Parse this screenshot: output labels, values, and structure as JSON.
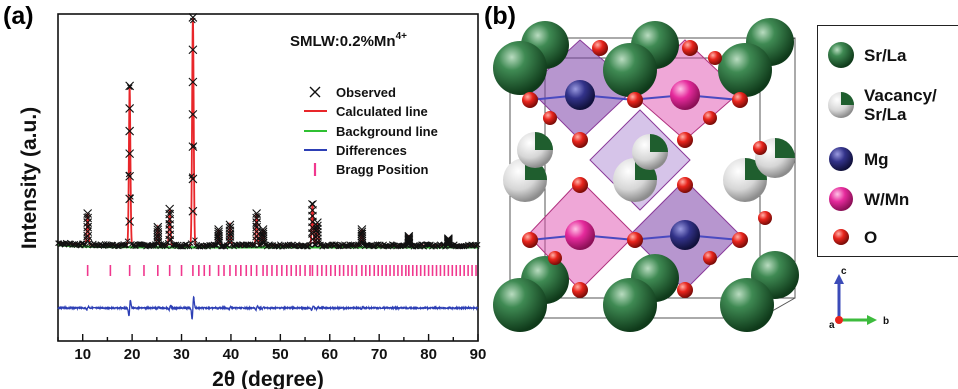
{
  "panel_a": {
    "label": "(a)",
    "annotation_main": "SMLW:0.2%Mn",
    "annotation_sup": "4+",
    "legend": [
      {
        "name": "Observed",
        "color": "#111111",
        "marker": "x"
      },
      {
        "name": "Calculated line",
        "color": "#e8262a",
        "marker": "line"
      },
      {
        "name": "Background line",
        "color": "#2fc032",
        "marker": "line"
      },
      {
        "name": "Differences",
        "color": "#2d3fb5",
        "marker": "line"
      },
      {
        "name": "Bragg Position",
        "color": "#f0388e",
        "marker": "tick"
      }
    ]
  },
  "panel_b": {
    "label": "(b)",
    "legend": [
      {
        "name": "Sr/La",
        "icon": "sr-la-sphere-icon",
        "color": "#1f5e2e"
      },
      {
        "name": "Vacancy/\nSr/La",
        "icon": "vacancy-sphere-icon",
        "color": "#d9d9d9"
      },
      {
        "name": "Mg",
        "icon": "mg-sphere-icon",
        "color": "#2a2a7a"
      },
      {
        "name": "W/Mn",
        "icon": "w-mn-sphere-icon",
        "color": "#e52a9c"
      },
      {
        "name": "O",
        "icon": "o-sphere-icon",
        "color": "#e8241c"
      }
    ],
    "axes": {
      "c": "c",
      "b": "b",
      "a": "a"
    }
  },
  "chart_data": {
    "type": "line",
    "title": "",
    "xlabel": "2θ (degree)",
    "ylabel": "Intensity (a.u.)",
    "xlim": [
      5,
      90
    ],
    "x_ticks": [
      "10",
      "20",
      "30",
      "40",
      "50",
      "60",
      "70",
      "80",
      "90"
    ],
    "y_ticks": [],
    "colors": {
      "observed": "#111111",
      "calculated": "#e8262a",
      "background": "#2fc032",
      "differences": "#2d3fb5",
      "bragg": "#f0388e"
    },
    "peaks": [
      {
        "x": 11.0,
        "y": 0.14
      },
      {
        "x": 19.5,
        "y": 0.7
      },
      {
        "x": 25.2,
        "y": 0.08
      },
      {
        "x": 27.6,
        "y": 0.16
      },
      {
        "x": 32.3,
        "y": 1.0
      },
      {
        "x": 37.5,
        "y": 0.07
      },
      {
        "x": 39.8,
        "y": 0.09
      },
      {
        "x": 45.2,
        "y": 0.14
      },
      {
        "x": 46.5,
        "y": 0.07
      },
      {
        "x": 56.5,
        "y": 0.18
      },
      {
        "x": 57.5,
        "y": 0.1
      },
      {
        "x": 66.5,
        "y": 0.07
      },
      {
        "x": 76.0,
        "y": 0.04
      },
      {
        "x": 84.0,
        "y": 0.03
      }
    ],
    "background_level": 0.02,
    "bragg_positions": [
      11.0,
      15.6,
      19.5,
      22.4,
      25.2,
      27.6,
      30.0,
      32.3,
      33.5,
      34.6,
      35.7,
      37.5,
      38.6,
      39.8,
      41.0,
      42.0,
      43.1,
      44.1,
      45.2,
      46.5,
      47.3,
      48.3,
      49.3,
      50.3,
      51.3,
      52.2,
      53.2,
      54.0,
      55.0,
      56.0,
      56.5,
      57.5,
      58.4,
      59.3,
      60.2,
      61.1,
      62.0,
      62.8,
      63.7,
      64.5,
      65.4,
      66.5,
      67.3,
      68.1,
      69.0,
      69.8,
      70.6,
      71.4,
      72.2,
      73.0,
      73.8,
      74.6,
      75.4,
      76.0,
      76.8,
      77.6,
      78.4,
      79.2,
      80.0,
      80.8,
      81.6,
      82.4,
      83.2,
      84.0,
      84.8,
      85.6,
      86.4,
      87.2,
      88.0,
      88.8,
      89.6
    ]
  }
}
